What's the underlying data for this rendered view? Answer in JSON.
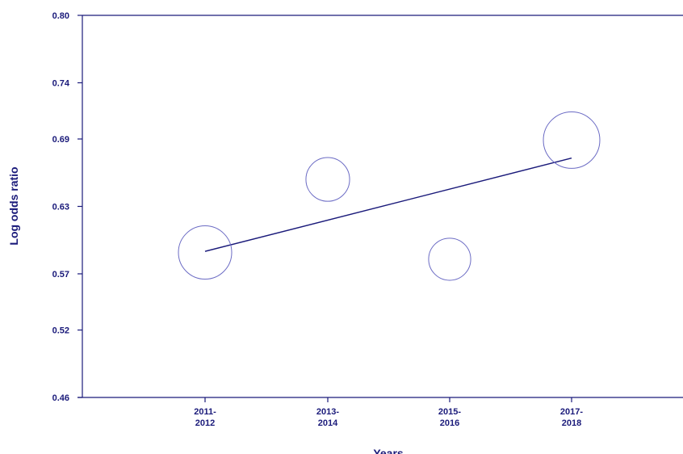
{
  "chart_data": {
    "type": "scatter",
    "title": "",
    "xlabel": "Years",
    "ylabel": "Log odds ratio",
    "ylim": [
      0.46,
      0.8
    ],
    "yticks": [
      "0.46",
      "0.52",
      "0.57",
      "0.63",
      "0.69",
      "0.74",
      "0.80"
    ],
    "categories": [
      [
        "2011-",
        "2012"
      ],
      [
        "2013-",
        "2014"
      ],
      [
        "2015-",
        "2016"
      ],
      [
        "2017-",
        "2018"
      ]
    ],
    "points": [
      {
        "category": "2011-2012",
        "y": 0.589,
        "weight": 1.0
      },
      {
        "category": "2013-2014",
        "y": 0.654,
        "weight": 0.82
      },
      {
        "category": "2015-2016",
        "y": 0.583,
        "weight": 0.79
      },
      {
        "category": "2017-2018",
        "y": 0.689,
        "weight": 1.06
      }
    ],
    "fit_line": [
      {
        "category": "2011-2012",
        "y": 0.59
      },
      {
        "category": "2017-2018",
        "y": 0.673
      }
    ],
    "grid": false,
    "legend": "none",
    "colors": {
      "axis": "#1a1a7a",
      "marker": "#6b6bc4",
      "line": "#1a1a7a"
    }
  }
}
